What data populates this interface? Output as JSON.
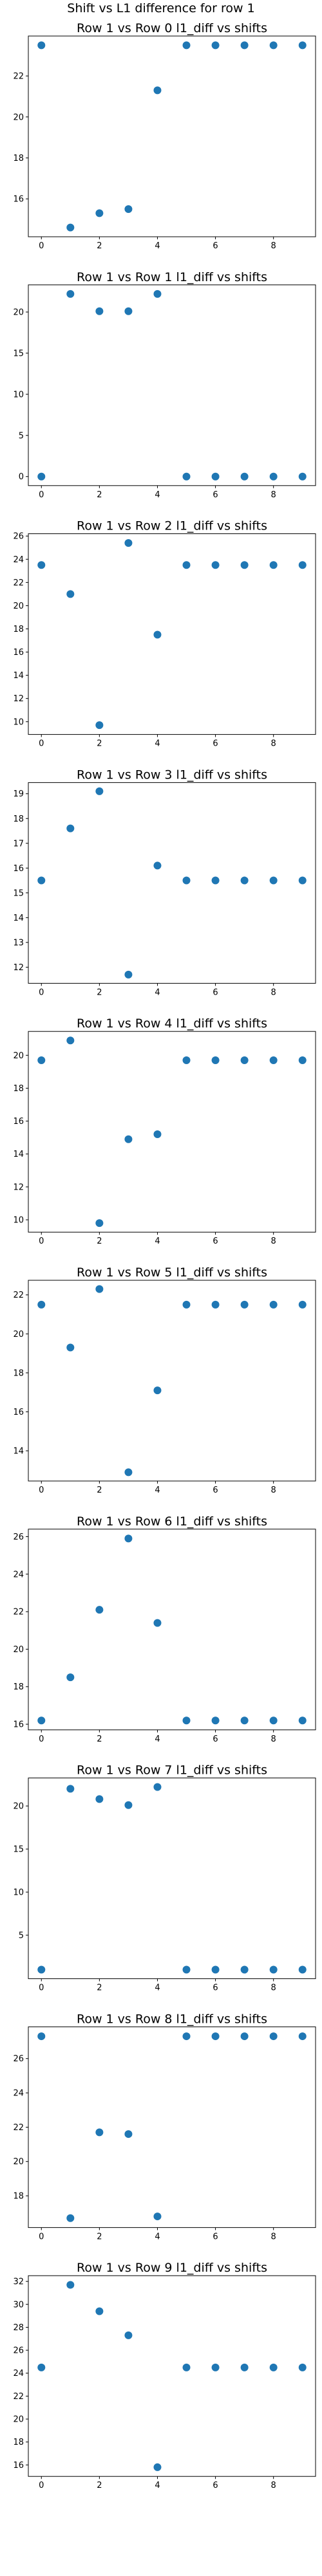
{
  "figure": {
    "suptitle": "Shift vs L1 difference for row 1"
  },
  "style": {
    "marker_color": "#1f77b4"
  },
  "chart_data": [
    {
      "type": "scatter",
      "title": "Row 1 vs Row 0 l1_diff vs shifts",
      "x": [
        0,
        1,
        2,
        3,
        4,
        5,
        6,
        7,
        8,
        9
      ],
      "y": [
        23.5,
        14.6,
        15.3,
        15.5,
        21.3,
        23.5,
        23.5,
        23.5,
        23.5,
        23.5
      ],
      "xlim": [
        -0.45,
        9.45
      ],
      "ylim": [
        14.15,
        23.95
      ],
      "xticks": [
        0,
        2,
        4,
        6,
        8
      ],
      "yticks": [
        16,
        18,
        20,
        22
      ]
    },
    {
      "type": "scatter",
      "title": "Row 1 vs Row 1 l1_diff vs shifts",
      "x": [
        0,
        1,
        2,
        3,
        4,
        5,
        6,
        7,
        8,
        9
      ],
      "y": [
        0,
        22.2,
        20.1,
        20.1,
        22.2,
        0,
        0,
        0,
        0,
        0
      ],
      "xlim": [
        -0.45,
        9.45
      ],
      "ylim": [
        -1.1,
        23.3
      ],
      "xticks": [
        0,
        2,
        4,
        6,
        8
      ],
      "yticks": [
        0,
        5,
        10,
        15,
        20
      ]
    },
    {
      "type": "scatter",
      "title": "Row 1 vs Row 2 l1_diff vs shifts",
      "x": [
        0,
        1,
        2,
        3,
        4,
        5,
        6,
        7,
        8,
        9
      ],
      "y": [
        23.5,
        21.0,
        9.7,
        25.4,
        17.5,
        23.5,
        23.5,
        23.5,
        23.5,
        23.5
      ],
      "xlim": [
        -0.45,
        9.45
      ],
      "ylim": [
        8.9,
        26.2
      ],
      "xticks": [
        0,
        2,
        4,
        6,
        8
      ],
      "yticks": [
        10,
        12,
        14,
        16,
        18,
        20,
        22,
        24,
        26
      ]
    },
    {
      "type": "scatter",
      "title": "Row 1 vs Row 3 l1_diff vs shifts",
      "x": [
        0,
        1,
        2,
        3,
        4,
        5,
        6,
        7,
        8,
        9
      ],
      "y": [
        15.5,
        17.6,
        19.1,
        11.7,
        16.1,
        15.5,
        15.5,
        15.5,
        15.5,
        15.5
      ],
      "xlim": [
        -0.45,
        9.45
      ],
      "ylim": [
        11.35,
        19.45
      ],
      "xticks": [
        0,
        2,
        4,
        6,
        8
      ],
      "yticks": [
        12,
        13,
        14,
        15,
        16,
        17,
        18,
        19
      ]
    },
    {
      "type": "scatter",
      "title": "Row 1 vs Row 4 l1_diff vs shifts",
      "x": [
        0,
        1,
        2,
        3,
        4,
        5,
        6,
        7,
        8,
        9
      ],
      "y": [
        19.7,
        20.9,
        9.8,
        14.9,
        15.2,
        19.7,
        19.7,
        19.7,
        19.7,
        19.7
      ],
      "xlim": [
        -0.45,
        9.45
      ],
      "ylim": [
        9.25,
        21.45
      ],
      "xticks": [
        0,
        2,
        4,
        6,
        8
      ],
      "yticks": [
        10,
        12,
        14,
        16,
        18,
        20
      ]
    },
    {
      "type": "scatter",
      "title": "Row 1 vs Row 5 l1_diff vs shifts",
      "x": [
        0,
        1,
        2,
        3,
        4,
        5,
        6,
        7,
        8,
        9
      ],
      "y": [
        21.5,
        19.3,
        22.3,
        12.9,
        17.1,
        21.5,
        21.5,
        21.5,
        21.5,
        21.5
      ],
      "xlim": [
        -0.45,
        9.45
      ],
      "ylim": [
        12.45,
        22.75
      ],
      "xticks": [
        0,
        2,
        4,
        6,
        8
      ],
      "yticks": [
        14,
        16,
        18,
        20,
        22
      ]
    },
    {
      "type": "scatter",
      "title": "Row 1 vs Row 6 l1_diff vs shifts",
      "x": [
        0,
        1,
        2,
        3,
        4,
        5,
        6,
        7,
        8,
        9
      ],
      "y": [
        16.2,
        18.5,
        22.1,
        25.9,
        21.4,
        16.2,
        16.2,
        16.2,
        16.2,
        16.2
      ],
      "xlim": [
        -0.45,
        9.45
      ],
      "ylim": [
        15.7,
        26.4
      ],
      "xticks": [
        0,
        2,
        4,
        6,
        8
      ],
      "yticks": [
        16,
        18,
        20,
        22,
        24,
        26
      ]
    },
    {
      "type": "scatter",
      "title": "Row 1 vs Row 7 l1_diff vs shifts",
      "x": [
        0,
        1,
        2,
        3,
        4,
        5,
        6,
        7,
        8,
        9
      ],
      "y": [
        1.0,
        22.0,
        20.8,
        20.1,
        22.2,
        1.0,
        1.0,
        1.0,
        1.0,
        1.0
      ],
      "xlim": [
        -0.45,
        9.45
      ],
      "ylim": [
        -0.05,
        23.25
      ],
      "xticks": [
        0,
        2,
        4,
        6,
        8
      ],
      "yticks": [
        5,
        10,
        15,
        20
      ]
    },
    {
      "type": "scatter",
      "title": "Row 1 vs Row 8 l1_diff vs shifts",
      "x": [
        0,
        1,
        2,
        3,
        4,
        5,
        6,
        7,
        8,
        9
      ],
      "y": [
        27.3,
        16.7,
        21.7,
        21.6,
        16.8,
        27.3,
        27.3,
        27.3,
        27.3,
        27.3
      ],
      "xlim": [
        -0.45,
        9.45
      ],
      "ylim": [
        16.15,
        27.85
      ],
      "xticks": [
        0,
        2,
        4,
        6,
        8
      ],
      "yticks": [
        18,
        20,
        22,
        24,
        26
      ]
    },
    {
      "type": "scatter",
      "title": "Row 1 vs Row 9 l1_diff vs shifts",
      "x": [
        0,
        1,
        2,
        3,
        4,
        5,
        6,
        7,
        8,
        9
      ],
      "y": [
        24.5,
        31.7,
        29.4,
        27.3,
        15.8,
        24.5,
        24.5,
        24.5,
        24.5,
        24.5
      ],
      "xlim": [
        -0.45,
        9.45
      ],
      "ylim": [
        15.0,
        32.5
      ],
      "xticks": [
        0,
        2,
        4,
        6,
        8
      ],
      "yticks": [
        16,
        18,
        20,
        22,
        24,
        26,
        28,
        30,
        32
      ]
    }
  ]
}
